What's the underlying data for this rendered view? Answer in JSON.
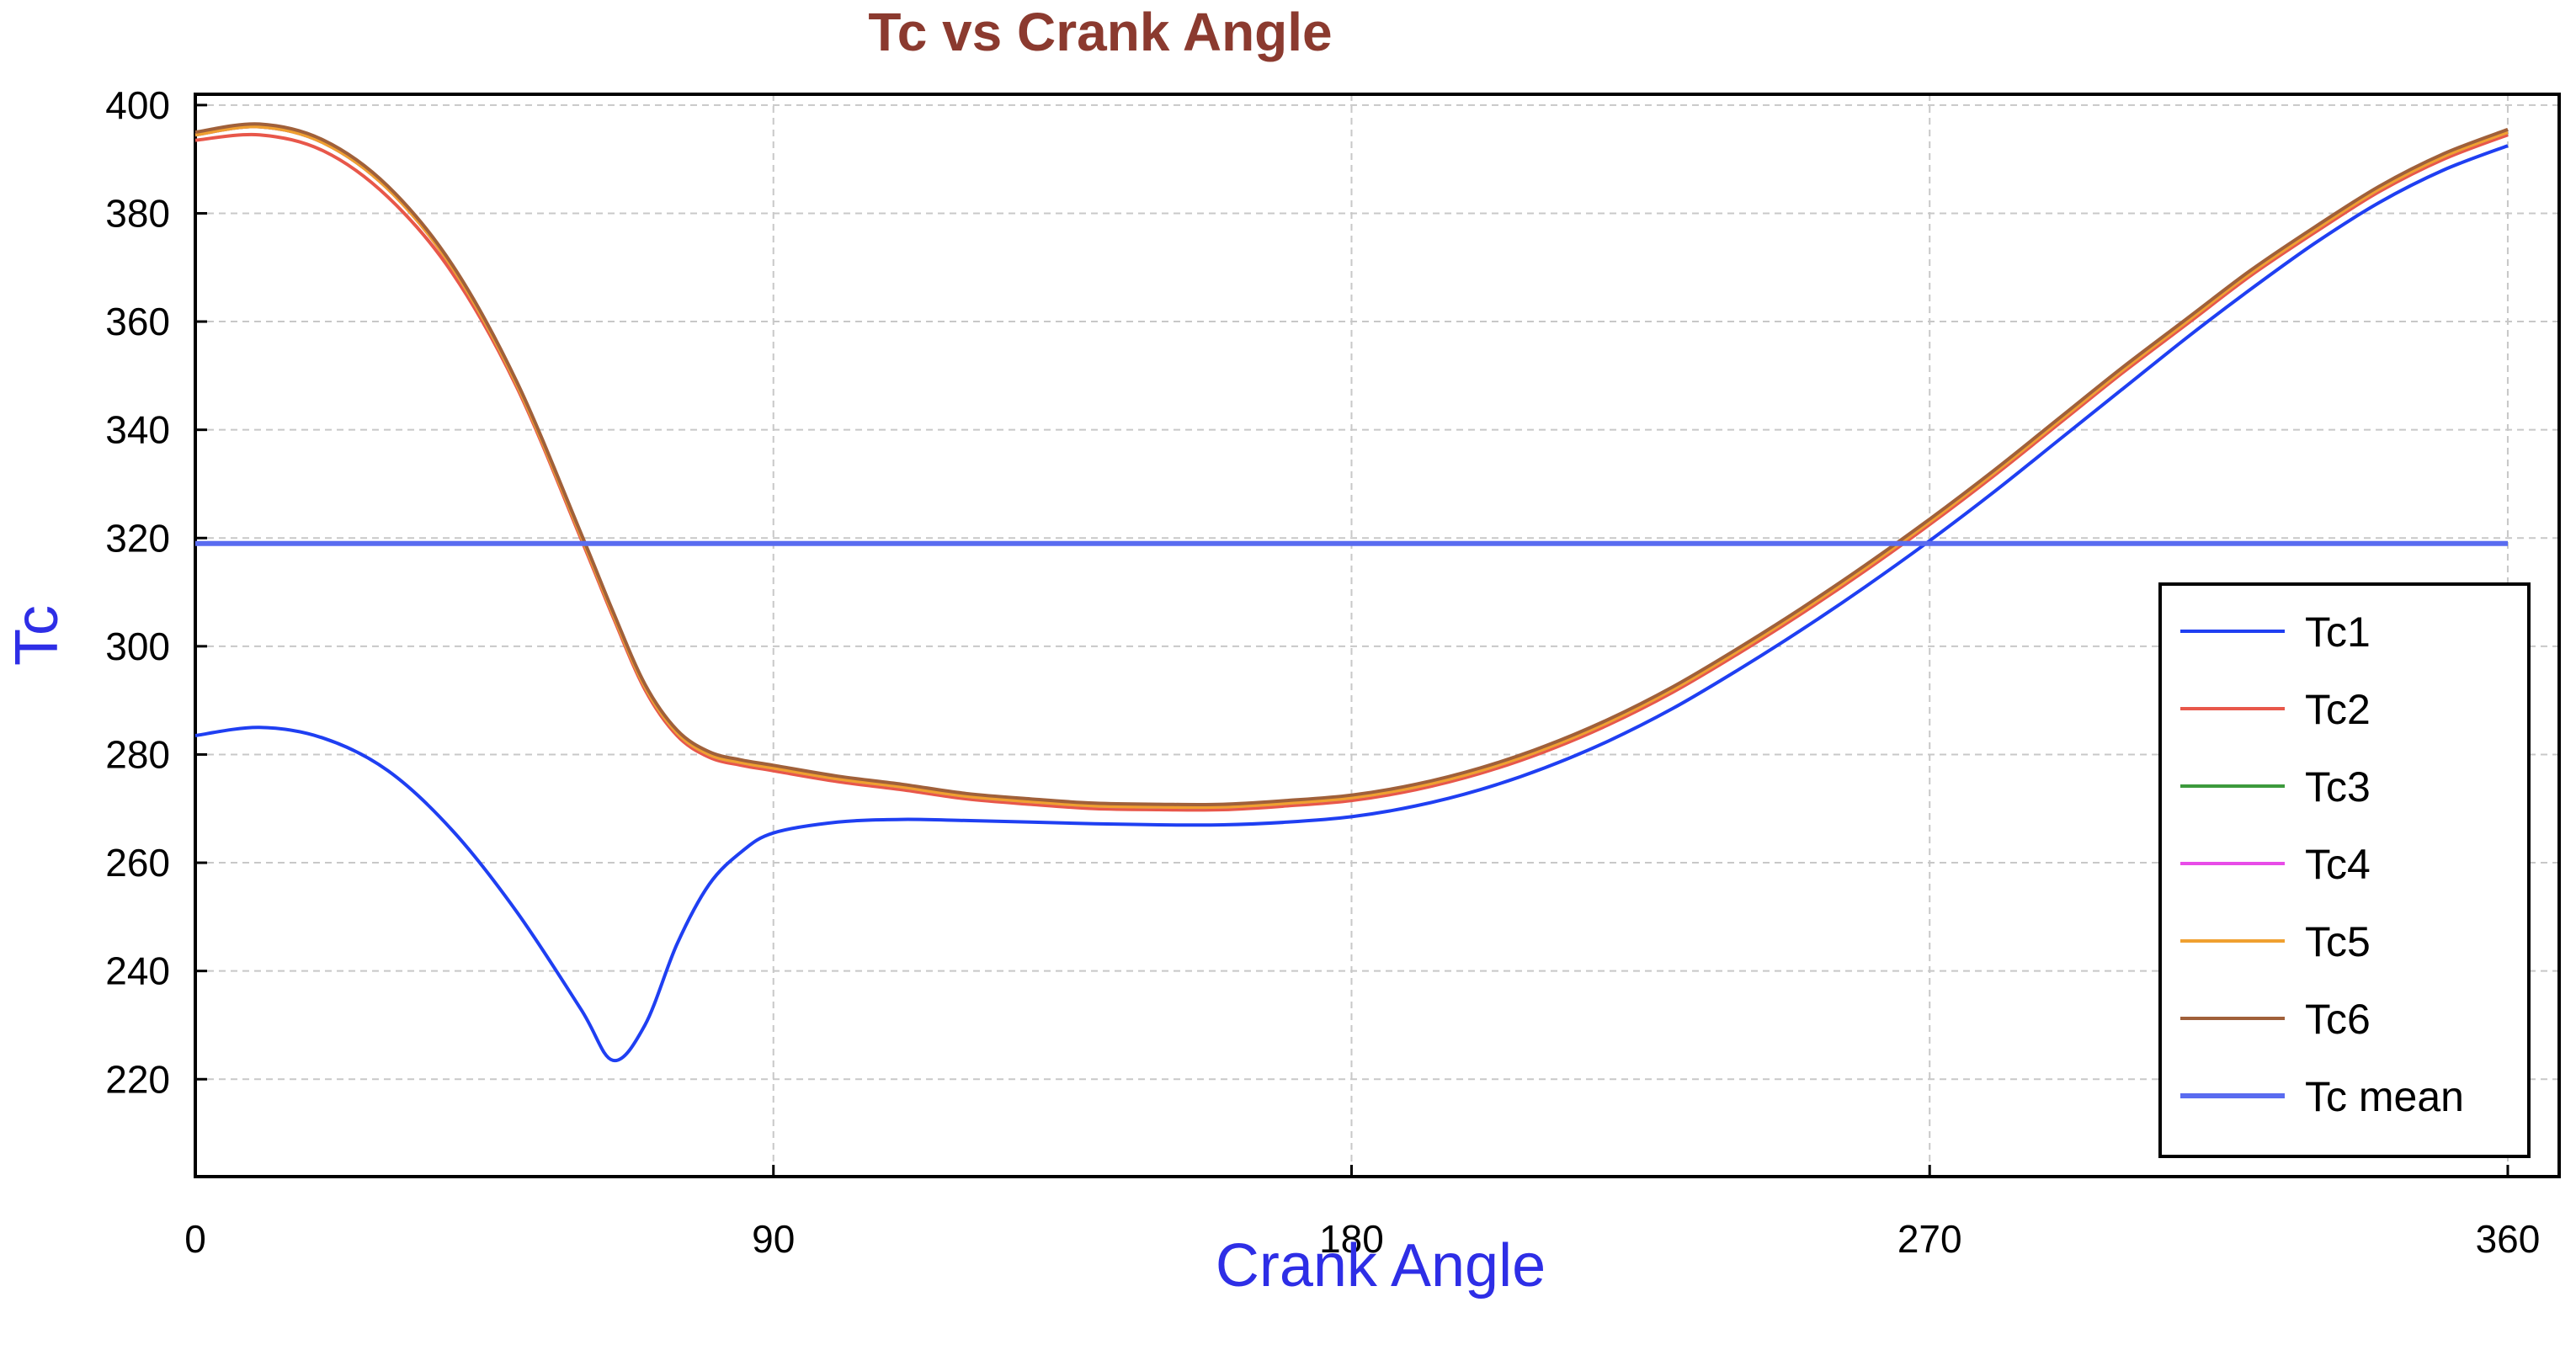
{
  "chart_data": {
    "type": "line",
    "title": "Tc vs Crank Angle",
    "xlabel": "Crank Angle",
    "ylabel": "Tc",
    "xlim": [
      0,
      368
    ],
    "ylim": [
      202,
      402
    ],
    "xticks": [
      0,
      90,
      180,
      270,
      360
    ],
    "yticks": [
      220,
      240,
      260,
      280,
      300,
      320,
      340,
      360,
      380,
      400
    ],
    "grid": true,
    "legend_position": "right",
    "colors": {
      "title": "#8b3a2f",
      "axis_label": "#2e2ee6",
      "grid": "#c8c8c8"
    },
    "x": [
      0,
      10,
      20,
      30,
      40,
      50,
      60,
      65,
      70,
      75,
      80,
      85,
      90,
      100,
      110,
      120,
      130,
      140,
      150,
      160,
      170,
      180,
      190,
      200,
      210,
      220,
      230,
      240,
      250,
      260,
      270,
      280,
      290,
      300,
      310,
      320,
      330,
      340,
      350,
      360
    ],
    "series": [
      {
        "name": "Tc1",
        "color": "#1f3ff2",
        "values": [
          283.5,
          285,
          283,
          277,
          266,
          251,
          233,
          223.5,
          230,
          245,
          256,
          262,
          265.5,
          267.5,
          268,
          267.8,
          267.5,
          267.2,
          267,
          267,
          267.5,
          268.5,
          270.5,
          273.5,
          277.5,
          282.5,
          288.5,
          295.5,
          303,
          311,
          319.5,
          328.5,
          338,
          347.5,
          357,
          366,
          374.5,
          382,
          388,
          392.5
        ]
      },
      {
        "name": "Tc2",
        "color": "#e8574a",
        "values": [
          393.5,
          394.5,
          391.5,
          383,
          369,
          348,
          320,
          305.5,
          292,
          283.5,
          279.5,
          278,
          277,
          275,
          273.5,
          271.8,
          270.8,
          270,
          269.8,
          269.8,
          270.5,
          271.5,
          273.5,
          276.5,
          280.5,
          285.5,
          291.5,
          298.5,
          306,
          314,
          322.5,
          331.5,
          341,
          350.5,
          359.5,
          368.5,
          376.5,
          384,
          390,
          394.5
        ]
      },
      {
        "name": "Tc3",
        "color": "#3c9a3c",
        "values": [
          394.5,
          396,
          393,
          384.5,
          370,
          348.5,
          320.5,
          306,
          292.5,
          284,
          280,
          278.5,
          277.5,
          275.5,
          274,
          272.3,
          271.3,
          270.5,
          270.3,
          270.3,
          271,
          272,
          274,
          277,
          281,
          286,
          292,
          299,
          306.5,
          314.5,
          323,
          332,
          341.5,
          351,
          360,
          369,
          377,
          384.5,
          390.5,
          395
        ]
      },
      {
        "name": "Tc4",
        "color": "#e84ce8",
        "values": [
          394.5,
          396,
          393,
          384.5,
          370,
          348.5,
          320.5,
          306,
          292.5,
          284,
          280,
          278.5,
          277.5,
          275.5,
          274,
          272.3,
          271.3,
          270.5,
          270.3,
          270.3,
          271,
          272,
          274,
          277,
          281,
          286,
          292,
          299,
          306.5,
          314.5,
          323,
          332,
          341.5,
          351,
          360,
          369,
          377,
          384.5,
          390.5,
          395
        ]
      },
      {
        "name": "Tc5",
        "color": "#f0a030",
        "values": [
          394.5,
          396,
          393,
          384.5,
          370,
          348.5,
          320.5,
          306,
          292.5,
          284,
          280,
          278.5,
          277.5,
          275.5,
          274,
          272.3,
          271.3,
          270.5,
          270.3,
          270.3,
          271,
          272,
          274,
          277,
          281,
          286,
          292,
          299,
          306.5,
          314.5,
          323,
          332,
          341.5,
          351,
          360,
          369,
          377,
          384.5,
          390.5,
          395
        ]
      },
      {
        "name": "Tc6",
        "color": "#a0603a",
        "values": [
          395,
          396.5,
          393.5,
          385,
          370.5,
          349,
          321,
          306.5,
          293,
          284.5,
          280.5,
          279,
          278,
          276,
          274.5,
          272.8,
          271.8,
          271,
          270.8,
          270.8,
          271.5,
          272.5,
          274.5,
          277.5,
          281.5,
          286.5,
          292.5,
          299.5,
          307,
          315,
          323.5,
          332.5,
          342,
          351.5,
          360.5,
          369.5,
          377.5,
          385,
          391,
          395.5
        ]
      },
      {
        "name": "Tc mean",
        "color": "#5a6cf0",
        "values": [
          319,
          319,
          319,
          319,
          319,
          319,
          319,
          319,
          319,
          319,
          319,
          319,
          319,
          319,
          319,
          319,
          319,
          319,
          319,
          319,
          319,
          319,
          319,
          319,
          319,
          319,
          319,
          319,
          319,
          319,
          319,
          319,
          319,
          319,
          319,
          319,
          319,
          319,
          319,
          319
        ]
      }
    ]
  }
}
